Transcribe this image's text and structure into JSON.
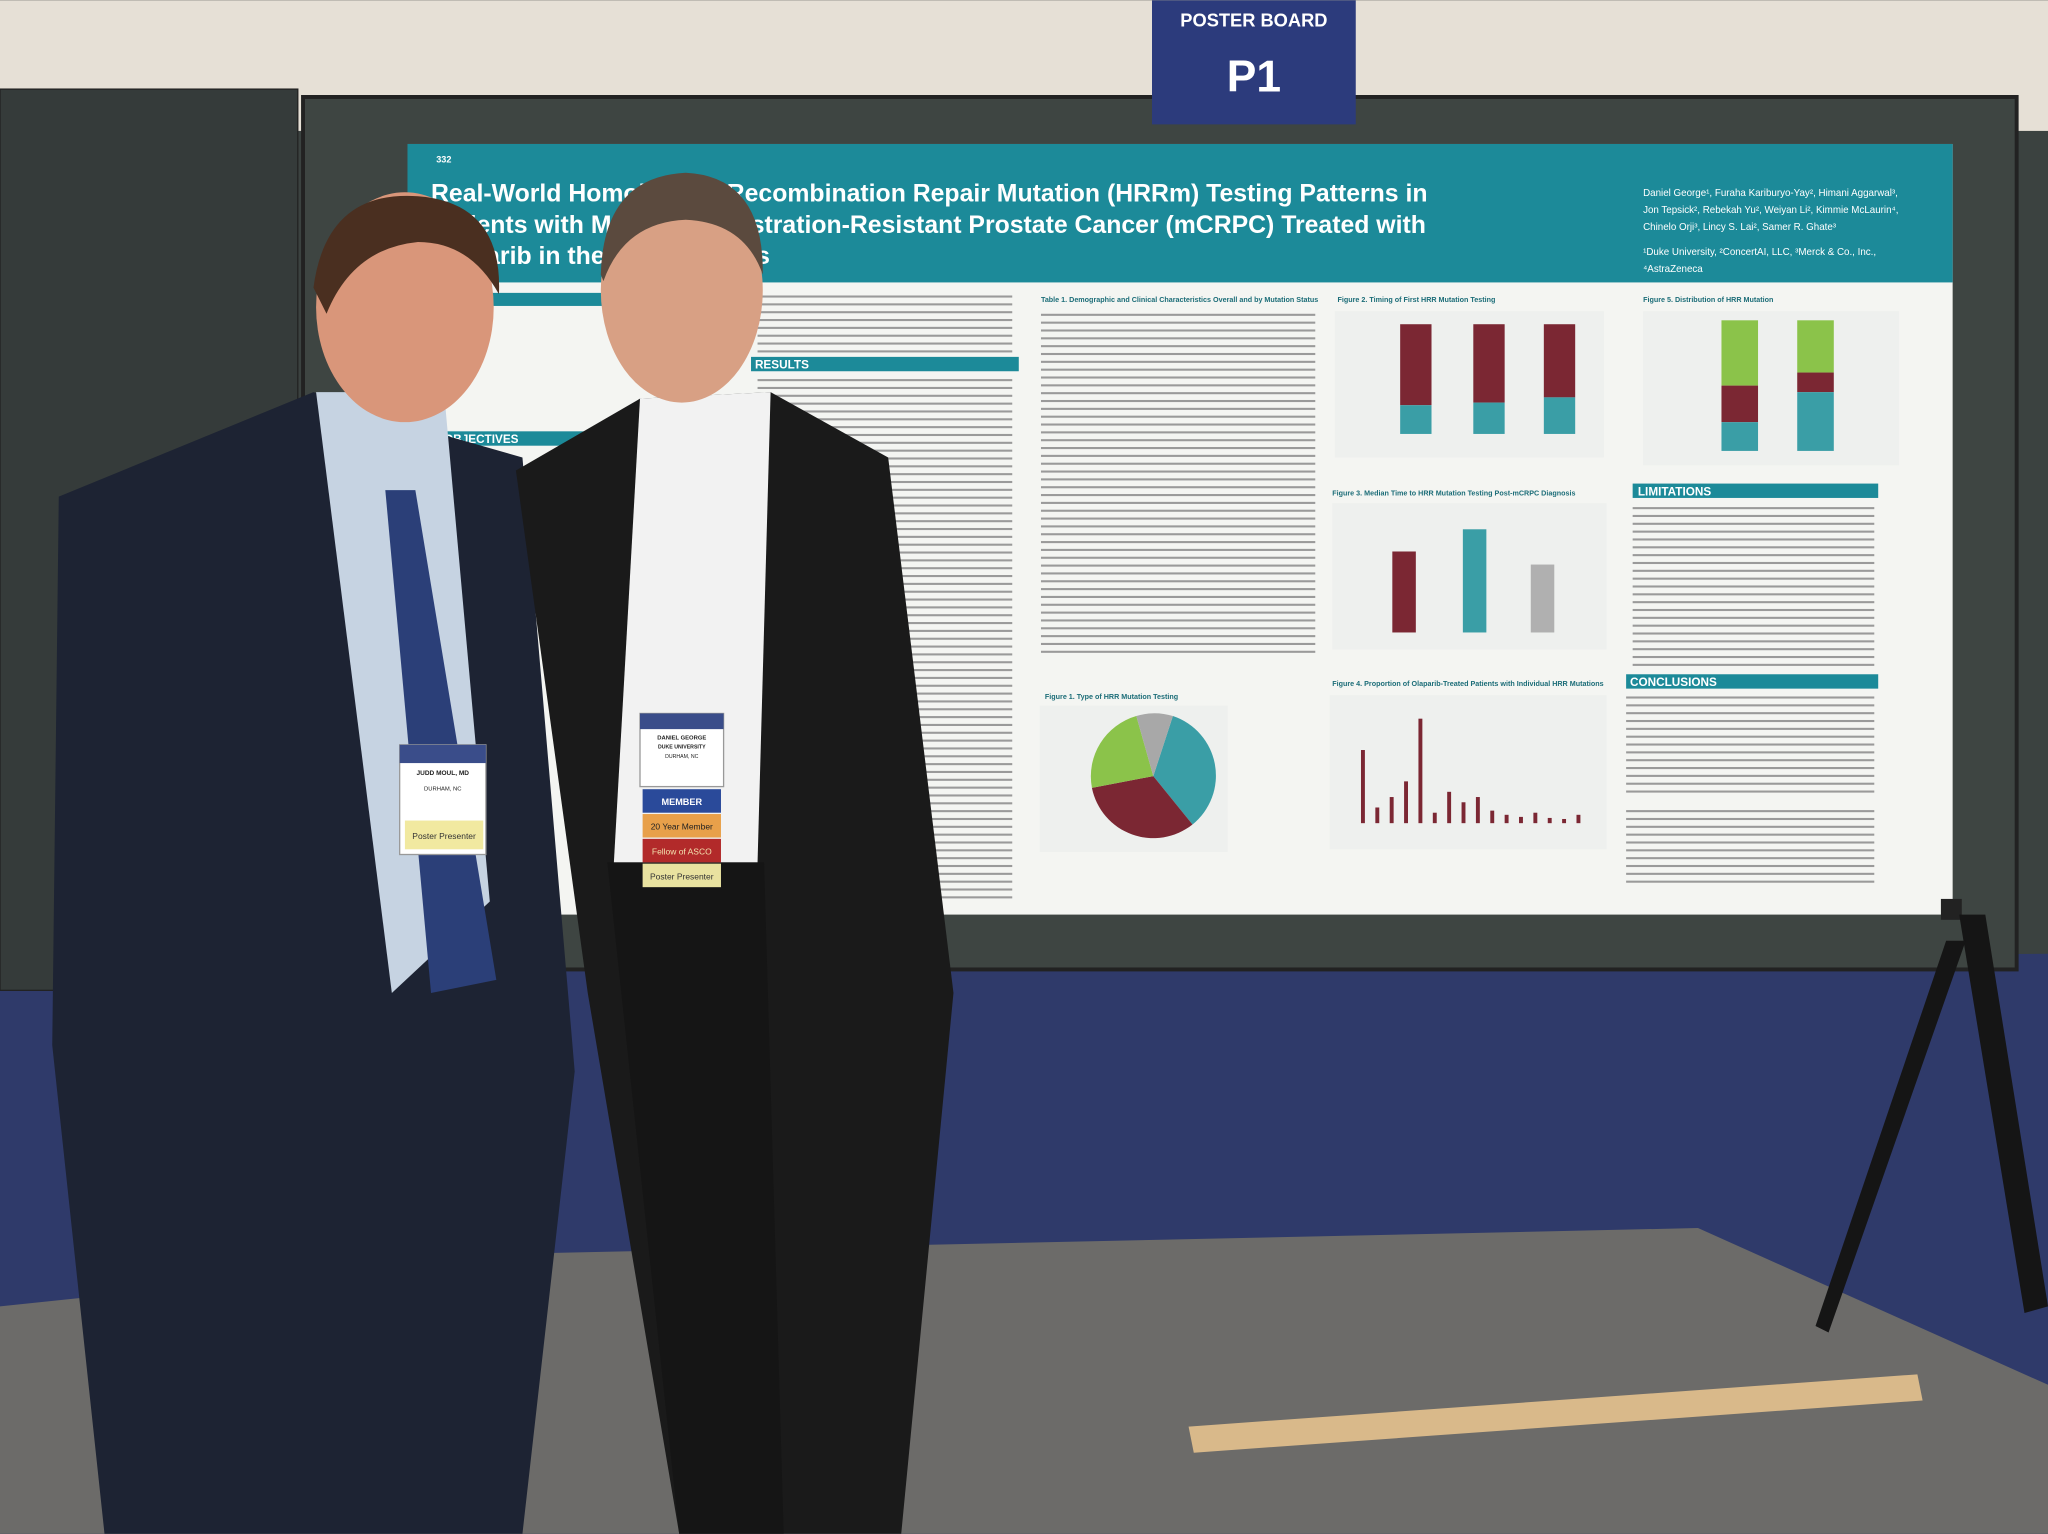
{
  "sign": {
    "heading": "POSTER BOARD",
    "board": "P1"
  },
  "poster": {
    "number": "332",
    "title": [
      "Real-World Homologous Recombination Repair Mutation (HRRm) Testing Patterns in",
      "Patients with Metastatic Castration-Resistant Prostate Cancer (mCRPC) Treated with",
      "Olaparib in the United States"
    ],
    "authors": [
      "Daniel George¹, Furaha Kariburyo-Yay², Himani Aggarwal³,",
      "Jon Tepsick², Rebekah Yu², Weiyan Li², Kimmie McLaurin⁴,",
      "Chinelo Orji³, Lincy S. Lai², Samer R. Ghate³",
      "¹Duke University, ²ConcertAI, LLC, ³Merck & Co., Inc.,",
      "⁴AstraZeneca"
    ],
    "sections": {
      "results": "RESULTS",
      "objectives": "OBJECTIVES",
      "limitations": "LIMITATIONS",
      "conclusions": "CONCLUSIONS"
    },
    "figures": {
      "table1": "Table 1. Demographic and Clinical Characteristics Overall and by Mutation Status",
      "fig1": "Figure 1. Type of HRR Mutation Testing",
      "fig2": "Figure 2. Timing of First HRR Mutation Testing",
      "fig3": "Figure 3. Median Time to HRR Mutation Testing Post-mCRPC Diagnosis",
      "fig4": "Figure 4. Proportion of Olaparib-Treated Patients with Individual HRR Mutations",
      "fig5": "Figure 5. Distribution of HRR Mutation"
    }
  },
  "badges": {
    "left": {
      "name": "JUDD MOUL, MD",
      "city": "DURHAM, NC",
      "ribbon": "Poster Presenter"
    },
    "right": {
      "name": "DANIEL GEORGE",
      "org": "DUKE UNIVERSITY",
      "city": "DURHAM, NC",
      "ribbons": [
        "MEMBER",
        "20 Year Member",
        "Fellow of ASCO",
        "Poster Presenter"
      ]
    }
  }
}
